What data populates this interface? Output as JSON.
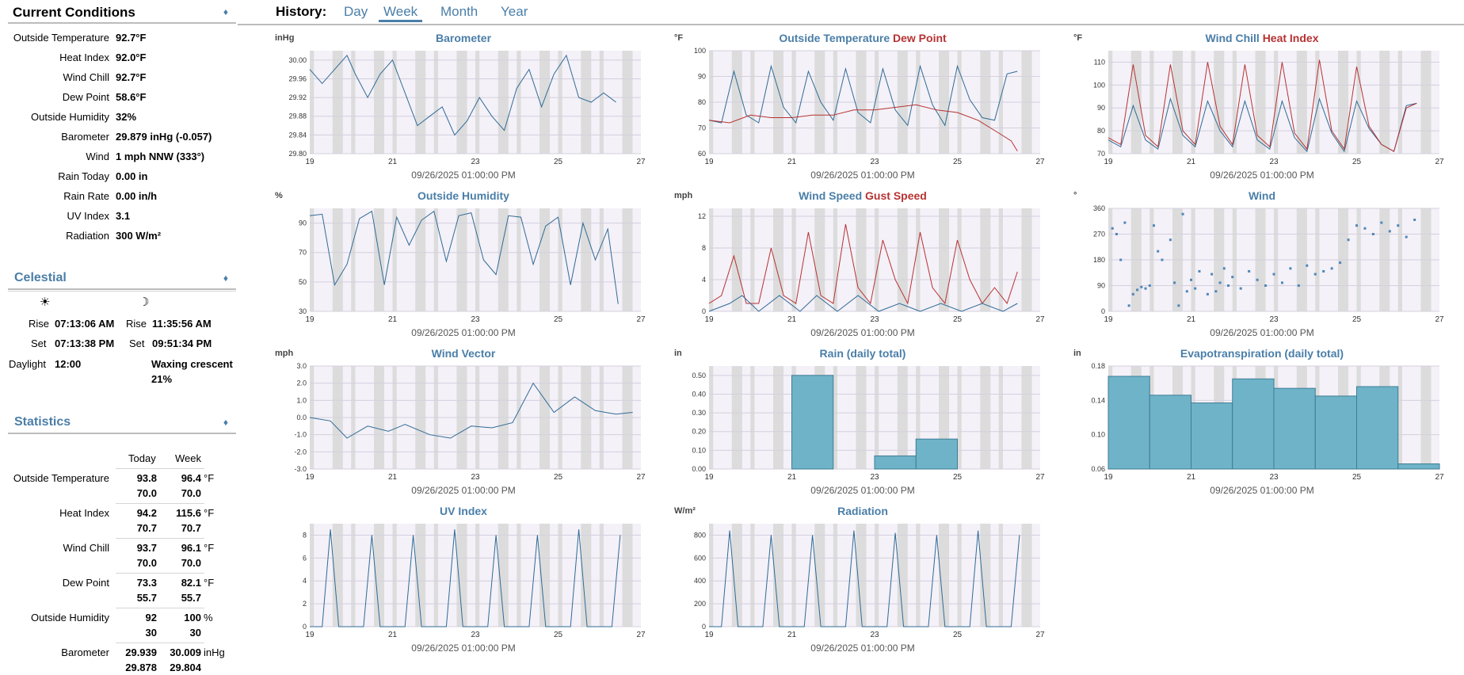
{
  "current": {
    "title": "Current Conditions",
    "rows": [
      {
        "label": "Outside Temperature",
        "value": "92.7°F"
      },
      {
        "label": "Heat Index",
        "value": "92.0°F"
      },
      {
        "label": "Wind Chill",
        "value": "92.7°F"
      },
      {
        "label": "Dew Point",
        "value": "58.6°F"
      },
      {
        "label": "Outside Humidity",
        "value": "32%"
      },
      {
        "label": "Barometer",
        "value": "29.879 inHg (-0.057)"
      },
      {
        "label": "Wind",
        "value": "1 mph NNW (333°)"
      },
      {
        "label": "Rain Today",
        "value": "0.00 in"
      },
      {
        "label": "Rain Rate",
        "value": "0.00 in/h"
      },
      {
        "label": "UV Index",
        "value": "3.1"
      },
      {
        "label": "Radiation",
        "value": "300 W/m²"
      }
    ]
  },
  "celestial": {
    "title": "Celestial",
    "sun_icon": "☀",
    "moon_icon": "☽",
    "sun_rise_label": "Rise",
    "sun_rise": "07:13:06 AM",
    "sun_set_label": "Set",
    "sun_set": "07:13:38 PM",
    "daylight_label": "Daylight",
    "daylight": "12:00",
    "moon_rise_label": "Rise",
    "moon_rise": "11:35:56 AM",
    "moon_set_label": "Set",
    "moon_set": "09:51:34 PM",
    "moon_phase": "Waxing crescent",
    "moon_fullness": "21%"
  },
  "statistics": {
    "title": "Statistics",
    "col_today": "Today",
    "col_week": "Week",
    "rows": [
      {
        "label": "Outside Temperature",
        "today_hi": "93.8",
        "today_lo": "70.0",
        "week_hi": "96.4",
        "week_lo": "70.0",
        "unit": "°F"
      },
      {
        "label": "Heat Index",
        "today_hi": "94.2",
        "today_lo": "70.7",
        "week_hi": "115.6",
        "week_lo": "70.7",
        "unit": "°F"
      },
      {
        "label": "Wind Chill",
        "today_hi": "93.7",
        "today_lo": "70.0",
        "week_hi": "96.1",
        "week_lo": "70.0",
        "unit": "°F"
      },
      {
        "label": "Dew Point",
        "today_hi": "73.3",
        "today_lo": "55.7",
        "week_hi": "82.1",
        "week_lo": "55.7",
        "unit": "°F"
      },
      {
        "label": "Outside Humidity",
        "today_hi": "92",
        "today_lo": "30",
        "week_hi": "100",
        "week_lo": "30",
        "unit": "%"
      },
      {
        "label": "Barometer",
        "today_hi": "29.939",
        "today_lo": "29.878",
        "week_hi": "30.009",
        "week_lo": "29.804",
        "unit": "inHg"
      }
    ]
  },
  "history": {
    "label": "History:",
    "tabs": [
      "Day",
      "Week",
      "Month",
      "Year"
    ],
    "active": "Week"
  },
  "chart_date_label": "09/26/2025 01:00:00 PM",
  "colors": {
    "accent": "#4a7ea8",
    "line_blue": "#2f6b96",
    "line_red": "#b73232",
    "bar": "#6fb3c8",
    "band": "#dcdcdc",
    "plot_bg": "#f4f1f8"
  },
  "chart_data": [
    {
      "id": "barometer",
      "type": "line",
      "title": "Barometer",
      "unit": "inHg",
      "xlim": [
        19,
        27
      ],
      "xticks": [
        "19",
        "21",
        "23",
        "25",
        "27"
      ],
      "ylim": [
        29.8,
        30.02
      ],
      "yticks": [
        "29.80",
        "29.84",
        "29.88",
        "29.92",
        "29.96",
        "30.00"
      ],
      "series": [
        {
          "color": "blue",
          "x": [
            19,
            19.3,
            19.6,
            19.9,
            20.1,
            20.4,
            20.7,
            21.0,
            21.3,
            21.6,
            21.9,
            22.2,
            22.5,
            22.8,
            23.1,
            23.4,
            23.7,
            24.0,
            24.3,
            24.6,
            24.9,
            25.2,
            25.5,
            25.8,
            26.1,
            26.4
          ],
          "y": [
            29.98,
            29.95,
            29.98,
            30.01,
            29.97,
            29.92,
            29.97,
            30.0,
            29.93,
            29.86,
            29.88,
            29.9,
            29.84,
            29.87,
            29.92,
            29.88,
            29.85,
            29.94,
            29.98,
            29.9,
            29.97,
            30.01,
            29.92,
            29.91,
            29.93,
            29.91
          ]
        }
      ]
    },
    {
      "id": "outtemp",
      "type": "line",
      "title": "Outside Temperature",
      "title2": "Dew Point",
      "unit": "°F",
      "xlim": [
        19,
        27
      ],
      "xticks": [
        "19",
        "21",
        "23",
        "25",
        "27"
      ],
      "ylim": [
        60,
        100
      ],
      "yticks": [
        "60",
        "70",
        "80",
        "90",
        "100"
      ],
      "series": [
        {
          "color": "blue",
          "x": [
            19,
            19.3,
            19.6,
            19.9,
            20.2,
            20.5,
            20.8,
            21.1,
            21.4,
            21.7,
            22.0,
            22.3,
            22.6,
            22.9,
            23.2,
            23.5,
            23.8,
            24.1,
            24.4,
            24.7,
            25.0,
            25.3,
            25.6,
            25.9,
            26.2,
            26.45
          ],
          "y": [
            73,
            72,
            92,
            75,
            72,
            94,
            78,
            72,
            92,
            80,
            73,
            93,
            76,
            72,
            93,
            77,
            71,
            94,
            79,
            71,
            94,
            81,
            74,
            73,
            91,
            92
          ]
        },
        {
          "color": "red",
          "x": [
            19,
            19.5,
            20,
            20.5,
            21,
            21.5,
            22,
            22.5,
            23,
            23.5,
            24,
            24.5,
            25,
            25.5,
            26,
            26.3,
            26.45
          ],
          "y": [
            73,
            72,
            75,
            74,
            74,
            75,
            75,
            77,
            77,
            78,
            79,
            77,
            76,
            73,
            68,
            65,
            61
          ]
        }
      ]
    },
    {
      "id": "windchill",
      "type": "line",
      "title": "Wind Chill",
      "title2": "Heat Index",
      "unit": "°F",
      "xlim": [
        19,
        27
      ],
      "xticks": [
        "19",
        "21",
        "23",
        "25",
        "27"
      ],
      "ylim": [
        70,
        115
      ],
      "yticks": [
        "70",
        "80",
        "90",
        "100",
        "110"
      ],
      "series": [
        {
          "color": "blue",
          "x": [
            19,
            19.3,
            19.6,
            19.9,
            20.2,
            20.5,
            20.8,
            21.1,
            21.4,
            21.7,
            22.0,
            22.3,
            22.6,
            22.9,
            23.2,
            23.5,
            23.8,
            24.1,
            24.4,
            24.7,
            25.0,
            25.3,
            25.6,
            25.9,
            26.2,
            26.45
          ],
          "y": [
            76,
            73,
            91,
            76,
            72,
            94,
            78,
            73,
            93,
            80,
            73,
            93,
            76,
            72,
            93,
            77,
            71,
            94,
            79,
            71,
            93,
            81,
            74,
            71,
            91,
            92
          ]
        },
        {
          "color": "red",
          "x": [
            19,
            19.3,
            19.6,
            19.9,
            20.2,
            20.5,
            20.8,
            21.1,
            21.4,
            21.7,
            22.0,
            22.3,
            22.6,
            22.9,
            23.2,
            23.5,
            23.8,
            24.1,
            24.4,
            24.7,
            25.0,
            25.3,
            25.6,
            25.9,
            26.2,
            26.45
          ],
          "y": [
            77,
            74,
            109,
            78,
            73,
            109,
            80,
            74,
            110,
            82,
            74,
            109,
            78,
            73,
            110,
            79,
            72,
            111,
            80,
            72,
            108,
            82,
            74,
            71,
            90,
            92
          ]
        }
      ]
    },
    {
      "id": "humidity",
      "type": "line",
      "title": "Outside Humidity",
      "unit": "%",
      "xlim": [
        19,
        27
      ],
      "xticks": [
        "19",
        "21",
        "23",
        "25",
        "27"
      ],
      "ylim": [
        30,
        100
      ],
      "yticks": [
        "30",
        "50",
        "70",
        "90"
      ],
      "series": [
        {
          "color": "blue",
          "x": [
            19,
            19.3,
            19.6,
            19.9,
            20.2,
            20.5,
            20.8,
            21.1,
            21.4,
            21.7,
            22.0,
            22.3,
            22.6,
            22.9,
            23.2,
            23.5,
            23.8,
            24.1,
            24.4,
            24.7,
            25.0,
            25.3,
            25.6,
            25.9,
            26.2,
            26.45
          ],
          "y": [
            95,
            96,
            48,
            62,
            93,
            98,
            48,
            94,
            75,
            92,
            98,
            64,
            95,
            97,
            65,
            55,
            95,
            94,
            62,
            88,
            94,
            48,
            90,
            65,
            86,
            35
          ]
        }
      ]
    },
    {
      "id": "windspeed",
      "type": "line",
      "title": "Wind Speed",
      "title2": "Gust Speed",
      "unit": "mph",
      "xlim": [
        19,
        27
      ],
      "xticks": [
        "19",
        "21",
        "23",
        "25",
        "27"
      ],
      "ylim": [
        0,
        13
      ],
      "yticks": [
        "0",
        "4",
        "8",
        "12"
      ],
      "series": [
        {
          "color": "red",
          "x": [
            19,
            19.3,
            19.6,
            19.9,
            20.2,
            20.5,
            20.8,
            21.1,
            21.4,
            21.7,
            22.0,
            22.3,
            22.6,
            22.9,
            23.2,
            23.5,
            23.8,
            24.1,
            24.4,
            24.7,
            25.0,
            25.3,
            25.6,
            25.9,
            26.2,
            26.45
          ],
          "y": [
            1,
            2,
            7,
            1,
            1,
            8,
            2,
            1,
            10,
            2,
            1,
            11,
            3,
            1,
            9,
            4,
            1,
            10,
            3,
            1,
            9,
            4,
            1,
            3,
            1,
            5
          ]
        },
        {
          "color": "blue",
          "x": [
            19,
            19.5,
            19.8,
            20.2,
            20.7,
            21.2,
            21.6,
            22.1,
            22.6,
            23.1,
            23.6,
            24.1,
            24.6,
            25.1,
            25.6,
            26.1,
            26.45
          ],
          "y": [
            0,
            1,
            2,
            0,
            2,
            0,
            2,
            0,
            2,
            0,
            1,
            0,
            1,
            0,
            1,
            0,
            1
          ]
        }
      ]
    },
    {
      "id": "wind",
      "type": "scatter",
      "title": "Wind",
      "unit": "°",
      "xlim": [
        19,
        27
      ],
      "xticks": [
        "19",
        "21",
        "23",
        "25",
        "27"
      ],
      "ylim": [
        0,
        360
      ],
      "yticks": [
        "0",
        "90",
        "180",
        "270",
        "360"
      ],
      "series": [
        {
          "color": "blue",
          "x": [
            19.1,
            19.2,
            19.3,
            19.4,
            19.5,
            19.6,
            19.7,
            19.8,
            19.9,
            20.0,
            20.1,
            20.2,
            20.3,
            20.5,
            20.6,
            20.7,
            20.8,
            20.9,
            21.0,
            21.1,
            21.2,
            21.4,
            21.5,
            21.6,
            21.7,
            21.8,
            21.9,
            22.0,
            22.2,
            22.4,
            22.6,
            22.8,
            23.0,
            23.2,
            23.4,
            23.6,
            23.8,
            24.0,
            24.2,
            24.4,
            24.6,
            24.8,
            25.0,
            25.2,
            25.4,
            25.6,
            25.8,
            26.0,
            26.2,
            26.4
          ],
          "y": [
            290,
            270,
            180,
            310,
            20,
            60,
            75,
            85,
            80,
            90,
            300,
            210,
            180,
            250,
            100,
            20,
            340,
            70,
            110,
            80,
            140,
            60,
            130,
            70,
            100,
            150,
            90,
            120,
            80,
            140,
            110,
            90,
            130,
            100,
            150,
            90,
            160,
            130,
            140,
            150,
            170,
            250,
            300,
            290,
            270,
            310,
            280,
            300,
            260,
            320
          ]
        }
      ]
    },
    {
      "id": "windvector",
      "type": "line",
      "title": "Wind Vector",
      "unit": "mph",
      "xlim": [
        19,
        27
      ],
      "xticks": [
        "19",
        "21",
        "23",
        "25",
        "27"
      ],
      "ylim": [
        -3,
        3
      ],
      "yticks": [
        "-3.0",
        "-2.0",
        "-1.0",
        "0.0",
        "1.0",
        "2.0",
        "3.0"
      ],
      "series": [
        {
          "color": "blue",
          "x": [
            19,
            19.5,
            19.9,
            20.4,
            20.9,
            21.3,
            21.9,
            22.4,
            22.9,
            23.4,
            23.9,
            24.4,
            24.9,
            25.4,
            25.9,
            26.4,
            26.8
          ],
          "y": [
            0,
            -0.2,
            -1.2,
            -0.5,
            -0.8,
            -0.4,
            -1.0,
            -1.2,
            -0.5,
            -0.6,
            -0.3,
            2.0,
            0.3,
            1.2,
            0.4,
            0.2,
            0.3
          ]
        }
      ]
    },
    {
      "id": "rain",
      "type": "bar",
      "title": "Rain (daily total)",
      "unit": "in",
      "xlim": [
        19,
        27
      ],
      "xticks": [
        "19",
        "21",
        "23",
        "25",
        "27"
      ],
      "ylim": [
        0,
        0.55
      ],
      "yticks": [
        "0.00",
        "0.10",
        "0.20",
        "0.30",
        "0.40",
        "0.50"
      ],
      "categories": [
        "19",
        "20",
        "21",
        "22",
        "23",
        "24",
        "25",
        "26"
      ],
      "values": [
        0,
        0,
        0.5,
        0,
        0.07,
        0.16,
        0,
        0
      ]
    },
    {
      "id": "et",
      "type": "bar",
      "title": "Evapotranspiration (daily total)",
      "unit": "in",
      "xlim": [
        19,
        27
      ],
      "xticks": [
        "19",
        "21",
        "23",
        "25",
        "27"
      ],
      "ylim": [
        0.06,
        0.18
      ],
      "yticks": [
        "0.06",
        "0.10",
        "0.14",
        "0.18"
      ],
      "categories": [
        "19",
        "20",
        "21",
        "22",
        "23",
        "24",
        "25",
        "26"
      ],
      "values": [
        0.168,
        0.146,
        0.137,
        0.165,
        0.154,
        0.145,
        0.156,
        0.066
      ]
    },
    {
      "id": "uv",
      "type": "line",
      "title": "UV Index",
      "unit": "",
      "xlim": [
        19,
        27
      ],
      "xticks": [
        "19",
        "21",
        "23",
        "25",
        "27"
      ],
      "ylim": [
        0,
        9
      ],
      "yticks": [
        "0",
        "2",
        "4",
        "6",
        "8"
      ],
      "series": [
        {
          "color": "blue",
          "x": [
            19,
            19.3,
            19.5,
            19.7,
            20.3,
            20.5,
            20.7,
            21.3,
            21.5,
            21.7,
            22.3,
            22.5,
            22.7,
            23.3,
            23.5,
            23.7,
            24.3,
            24.5,
            24.7,
            25.3,
            25.5,
            25.7,
            26.3,
            26.5
          ],
          "y": [
            0,
            0,
            8.5,
            0,
            0,
            8,
            0,
            0,
            8,
            0,
            0,
            8.5,
            0,
            0,
            8,
            0,
            0,
            8,
            0,
            0,
            8.5,
            0,
            0,
            8
          ]
        }
      ]
    },
    {
      "id": "radiation",
      "type": "line",
      "title": "Radiation",
      "unit": "W/m²",
      "xlim": [
        19,
        27
      ],
      "xticks": [
        "19",
        "21",
        "23",
        "25",
        "27"
      ],
      "ylim": [
        0,
        900
      ],
      "yticks": [
        "0",
        "200",
        "400",
        "600",
        "800"
      ],
      "series": [
        {
          "color": "blue",
          "x": [
            19,
            19.3,
            19.5,
            19.7,
            20.3,
            20.5,
            20.7,
            21.3,
            21.5,
            21.7,
            22.3,
            22.5,
            22.7,
            23.3,
            23.5,
            23.7,
            24.3,
            24.5,
            24.7,
            25.3,
            25.5,
            25.7,
            26.3,
            26.5
          ],
          "y": [
            0,
            0,
            840,
            0,
            0,
            800,
            0,
            0,
            800,
            0,
            0,
            840,
            0,
            0,
            820,
            0,
            0,
            800,
            0,
            0,
            840,
            0,
            0,
            800
          ]
        }
      ]
    }
  ]
}
